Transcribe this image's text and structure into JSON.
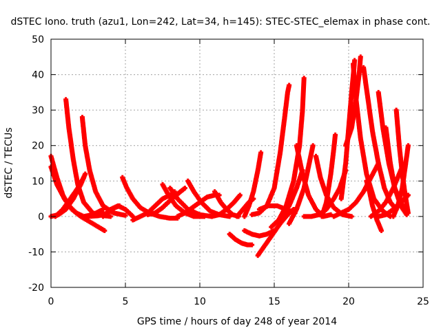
{
  "chart_data": {
    "type": "scatter",
    "title": "dSTEC Iono. truth (azu1, Lon=242, Lat=34, h=145): STEC-STEC_elemax in phase cont.",
    "xlabel": "GPS time / hours of day 248 of year 2014",
    "ylabel": "dSTEC  / TECUs",
    "xlim": [
      0,
      25
    ],
    "ylim": [
      -20,
      50
    ],
    "xticks": [
      "0",
      "5",
      "10",
      "15",
      "20",
      "25"
    ],
    "yticks": [
      "-20",
      "-10",
      "0",
      "10",
      "20",
      "30",
      "40",
      "50"
    ],
    "grid": true,
    "legend": "none",
    "marker": "+",
    "color": "#ff0000",
    "arcs": [
      {
        "points": [
          [
            0.0,
            17
          ],
          [
            0.4,
            11
          ],
          [
            0.8,
            6
          ],
          [
            1.2,
            3
          ],
          [
            1.7,
            1
          ],
          [
            2.2,
            0
          ],
          [
            2.8,
            0.5
          ],
          [
            3.5,
            2
          ]
        ]
      },
      {
        "points": [
          [
            0.0,
            14
          ],
          [
            0.4,
            9
          ],
          [
            0.9,
            5
          ],
          [
            1.4,
            2
          ],
          [
            2.0,
            0
          ],
          [
            2.6,
            -1.5
          ],
          [
            3.2,
            -3
          ],
          [
            3.6,
            -4
          ]
        ]
      },
      {
        "points": [
          [
            0.0,
            0
          ],
          [
            0.5,
            0.5
          ],
          [
            1.0,
            2
          ],
          [
            1.5,
            5
          ],
          [
            2.0,
            9
          ],
          [
            2.3,
            12
          ]
        ]
      },
      {
        "points": [
          [
            0.3,
            0
          ],
          [
            0.8,
            2
          ],
          [
            1.3,
            5
          ],
          [
            1.8,
            8
          ],
          [
            2.2,
            11
          ]
        ]
      },
      {
        "points": [
          [
            1.0,
            33
          ],
          [
            1.2,
            25
          ],
          [
            1.5,
            16
          ],
          [
            1.8,
            9
          ],
          [
            2.2,
            4
          ],
          [
            2.8,
            1
          ],
          [
            3.4,
            0.3
          ],
          [
            4.0,
            0
          ]
        ]
      },
      {
        "points": [
          [
            2.1,
            28
          ],
          [
            2.3,
            20
          ],
          [
            2.6,
            13
          ],
          [
            3.0,
            7
          ],
          [
            3.5,
            3
          ],
          [
            4.2,
            1
          ],
          [
            5.0,
            0.3
          ]
        ]
      },
      {
        "points": [
          [
            2.5,
            0
          ],
          [
            3.2,
            0.2
          ],
          [
            3.8,
            1
          ],
          [
            4.3,
            2.5
          ],
          [
            4.6,
            3
          ]
        ]
      },
      {
        "points": [
          [
            3.5,
            0
          ],
          [
            4.0,
            2
          ],
          [
            4.5,
            3
          ],
          [
            5.0,
            2
          ],
          [
            5.5,
            0
          ]
        ]
      },
      {
        "points": [
          [
            4.8,
            11
          ],
          [
            5.1,
            8
          ],
          [
            5.5,
            5
          ],
          [
            6.0,
            2.5
          ],
          [
            6.6,
            1
          ],
          [
            7.3,
            0
          ],
          [
            8.0,
            -0.5
          ],
          [
            8.5,
            -0.5
          ]
        ]
      },
      {
        "points": [
          [
            5.5,
            -1
          ],
          [
            6.0,
            0
          ],
          [
            6.5,
            1
          ],
          [
            7.0,
            3
          ],
          [
            7.5,
            5
          ],
          [
            8.0,
            6
          ],
          [
            8.3,
            7
          ]
        ]
      },
      {
        "points": [
          [
            6.5,
            0.5
          ],
          [
            7.0,
            1
          ],
          [
            7.5,
            2.5
          ],
          [
            8.0,
            4.5
          ],
          [
            8.7,
            7
          ],
          [
            9.0,
            8
          ]
        ]
      },
      {
        "points": [
          [
            7.5,
            9
          ],
          [
            7.9,
            6
          ],
          [
            8.4,
            3
          ],
          [
            9.0,
            1
          ],
          [
            9.6,
            0
          ],
          [
            10.3,
            0
          ]
        ]
      },
      {
        "points": [
          [
            8.0,
            8
          ],
          [
            8.5,
            5
          ],
          [
            9.2,
            2
          ],
          [
            10.0,
            0.5
          ],
          [
            10.8,
            0
          ]
        ]
      },
      {
        "points": [
          [
            8.5,
            0
          ],
          [
            9.0,
            1
          ],
          [
            9.5,
            2.5
          ],
          [
            10.0,
            4
          ],
          [
            10.5,
            5.5
          ],
          [
            11.0,
            6
          ],
          [
            11.3,
            6
          ]
        ]
      },
      {
        "points": [
          [
            9.2,
            10
          ],
          [
            9.6,
            7
          ],
          [
            10.1,
            4
          ],
          [
            10.7,
            1.5
          ],
          [
            11.3,
            0.5
          ],
          [
            12.0,
            0
          ]
        ]
      },
      {
        "points": [
          [
            10.8,
            0
          ],
          [
            11.3,
            0.5
          ],
          [
            11.8,
            2
          ],
          [
            12.3,
            4
          ],
          [
            12.7,
            6
          ]
        ]
      },
      {
        "points": [
          [
            11.0,
            7
          ],
          [
            11.4,
            4
          ],
          [
            11.8,
            2
          ],
          [
            12.2,
            0.5
          ],
          [
            12.6,
            0
          ]
        ]
      },
      {
        "points": [
          [
            12.0,
            -5
          ],
          [
            12.4,
            -6.5
          ],
          [
            12.8,
            -7.5
          ],
          [
            13.2,
            -8
          ],
          [
            13.5,
            -8
          ]
        ]
      },
      {
        "points": [
          [
            12.5,
            0
          ],
          [
            12.9,
            2
          ],
          [
            13.3,
            4
          ],
          [
            13.6,
            5
          ]
        ]
      },
      {
        "points": [
          [
            13.0,
            0
          ],
          [
            13.3,
            3
          ],
          [
            13.6,
            7
          ],
          [
            13.9,
            13
          ],
          [
            14.1,
            18
          ]
        ]
      },
      {
        "points": [
          [
            13.0,
            -4
          ],
          [
            13.5,
            -5
          ],
          [
            14.0,
            -5.5
          ],
          [
            14.5,
            -5
          ],
          [
            15.0,
            -4
          ]
        ]
      },
      {
        "points": [
          [
            13.5,
            0.5
          ],
          [
            14.0,
            1
          ],
          [
            14.5,
            3
          ],
          [
            15.0,
            8
          ],
          [
            15.4,
            18
          ],
          [
            15.7,
            28
          ],
          [
            15.9,
            35
          ],
          [
            16.0,
            37
          ]
        ]
      },
      {
        "points": [
          [
            13.9,
            -11
          ],
          [
            14.4,
            -8
          ],
          [
            14.9,
            -5
          ],
          [
            15.4,
            -2
          ],
          [
            15.9,
            0.5
          ],
          [
            16.3,
            2
          ]
        ]
      },
      {
        "points": [
          [
            14.0,
            2
          ],
          [
            14.6,
            3
          ],
          [
            15.2,
            3
          ],
          [
            15.8,
            2
          ],
          [
            16.4,
            1
          ]
        ]
      },
      {
        "points": [
          [
            14.8,
            -3
          ],
          [
            15.3,
            -1
          ],
          [
            15.8,
            3
          ],
          [
            16.3,
            10
          ],
          [
            16.7,
            20
          ],
          [
            16.9,
            30
          ],
          [
            17.0,
            39
          ]
        ]
      },
      {
        "points": [
          [
            15.5,
            0
          ],
          [
            16.0,
            3
          ],
          [
            16.5,
            8
          ],
          [
            16.9,
            13
          ]
        ]
      },
      {
        "points": [
          [
            16.0,
            -2
          ],
          [
            16.5,
            2
          ],
          [
            17.0,
            8
          ],
          [
            17.3,
            14
          ],
          [
            17.6,
            20
          ]
        ]
      },
      {
        "points": [
          [
            16.5,
            20
          ],
          [
            16.9,
            12
          ],
          [
            17.3,
            6
          ],
          [
            17.8,
            2
          ],
          [
            18.3,
            0
          ],
          [
            18.8,
            0.5
          ]
        ]
      },
      {
        "points": [
          [
            17.0,
            0
          ],
          [
            17.5,
            0
          ],
          [
            18.0,
            0.5
          ],
          [
            18.5,
            2
          ],
          [
            19.0,
            5
          ],
          [
            19.4,
            8
          ],
          [
            19.8,
            13
          ]
        ]
      },
      {
        "points": [
          [
            17.8,
            17
          ],
          [
            18.1,
            11
          ],
          [
            18.5,
            6
          ],
          [
            19.0,
            2.5
          ],
          [
            19.6,
            0.5
          ],
          [
            20.2,
            0
          ]
        ]
      },
      {
        "points": [
          [
            18.2,
            0
          ],
          [
            18.5,
            4
          ],
          [
            18.8,
            12
          ],
          [
            19.0,
            19
          ],
          [
            19.1,
            23
          ]
        ]
      },
      {
        "points": [
          [
            19.0,
            0
          ],
          [
            19.5,
            1
          ],
          [
            20.0,
            2
          ],
          [
            20.5,
            4
          ],
          [
            21.0,
            7
          ],
          [
            21.5,
            11
          ],
          [
            22.0,
            15
          ]
        ]
      },
      {
        "points": [
          [
            19.5,
            5
          ],
          [
            19.8,
            15
          ],
          [
            20.0,
            25
          ],
          [
            20.2,
            35
          ],
          [
            20.4,
            44
          ]
        ]
      },
      {
        "points": [
          [
            20.3,
            43
          ],
          [
            20.5,
            33
          ],
          [
            20.8,
            22
          ],
          [
            21.2,
            12
          ],
          [
            21.7,
            5
          ],
          [
            22.3,
            1.5
          ],
          [
            22.8,
            0
          ]
        ]
      },
      {
        "points": [
          [
            19.8,
            20
          ],
          [
            20.2,
            25
          ],
          [
            20.5,
            33
          ],
          [
            20.7,
            40
          ],
          [
            20.8,
            45
          ]
        ]
      },
      {
        "points": [
          [
            21.0,
            42
          ],
          [
            21.3,
            33
          ],
          [
            21.6,
            24
          ],
          [
            22.0,
            15
          ],
          [
            22.4,
            8
          ],
          [
            22.8,
            4
          ],
          [
            23.2,
            2
          ]
        ]
      },
      {
        "points": [
          [
            21.5,
            0
          ],
          [
            22.0,
            1.5
          ],
          [
            22.5,
            4
          ],
          [
            23.0,
            8
          ],
          [
            23.4,
            12
          ],
          [
            23.6,
            14
          ]
        ]
      },
      {
        "points": [
          [
            22.2,
            -4
          ],
          [
            21.9,
            -1
          ],
          [
            21.6,
            3
          ],
          [
            21.4,
            7
          ],
          [
            21.2,
            10
          ]
        ]
      },
      {
        "points": [
          [
            22.0,
            35
          ],
          [
            22.3,
            25
          ],
          [
            22.7,
            15
          ],
          [
            23.1,
            8
          ],
          [
            23.5,
            4
          ],
          [
            23.9,
            1
          ]
        ]
      },
      {
        "points": [
          [
            22.5,
            25
          ],
          [
            22.8,
            15
          ],
          [
            23.1,
            8
          ],
          [
            23.5,
            3
          ],
          [
            23.9,
            0.5
          ]
        ]
      },
      {
        "points": [
          [
            23.2,
            30
          ],
          [
            23.4,
            20
          ],
          [
            23.6,
            12
          ],
          [
            23.8,
            6
          ],
          [
            24.0,
            1
          ]
        ]
      },
      {
        "points": [
          [
            23.0,
            0
          ],
          [
            23.3,
            3
          ],
          [
            23.6,
            8
          ],
          [
            23.8,
            14
          ],
          [
            24.0,
            20
          ]
        ]
      },
      {
        "points": [
          [
            22.0,
            0
          ],
          [
            22.5,
            0.5
          ],
          [
            23.0,
            2
          ],
          [
            23.5,
            4
          ],
          [
            24.0,
            6
          ]
        ]
      }
    ]
  }
}
